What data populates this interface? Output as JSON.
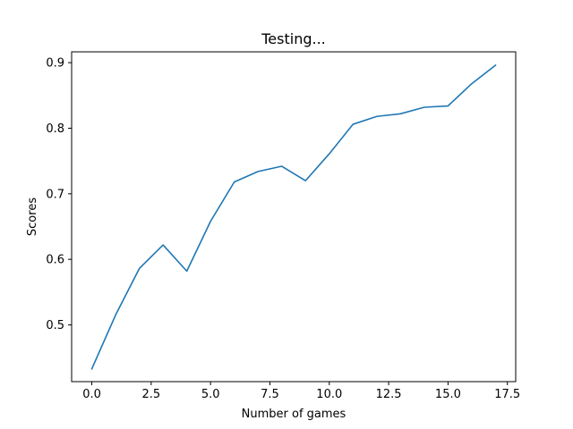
{
  "chart_data": {
    "type": "line",
    "title": "Testing...",
    "xlabel": "Number of games",
    "ylabel": "Scores",
    "xlim": [
      -0.85,
      17.85
    ],
    "ylim": [
      0.4135,
      0.9165
    ],
    "x_ticks": [
      0.0,
      2.5,
      5.0,
      7.5,
      10.0,
      12.5,
      15.0,
      17.5
    ],
    "x_tick_labels": [
      "0.0",
      "2.5",
      "5.0",
      "7.5",
      "10.0",
      "12.5",
      "15.0",
      "17.5"
    ],
    "y_ticks": [
      0.5,
      0.6,
      0.7,
      0.8,
      0.9
    ],
    "y_tick_labels": [
      "0.5",
      "0.6",
      "0.7",
      "0.8",
      "0.9"
    ],
    "grid": false,
    "series": [
      {
        "color": "#1f77b4",
        "x": [
          0,
          1,
          2,
          3,
          4,
          5,
          6,
          7,
          8,
          9,
          10,
          11,
          12,
          13,
          14,
          15,
          16,
          17
        ],
        "y": [
          0.433,
          0.515,
          0.586,
          0.622,
          0.582,
          0.658,
          0.718,
          0.734,
          0.742,
          0.72,
          0.761,
          0.806,
          0.818,
          0.822,
          0.832,
          0.834,
          0.868,
          0.896
        ]
      }
    ]
  }
}
